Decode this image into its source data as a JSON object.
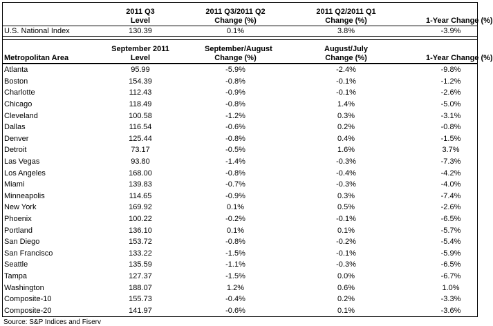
{
  "table": {
    "national": {
      "header": [
        [
          ""
        ],
        [
          "2011 Q3",
          "Level"
        ],
        [
          "2011 Q3/2011 Q2",
          "Change (%)"
        ],
        [
          "2011 Q2/2011 Q1",
          "Change (%)"
        ],
        [
          "",
          "1-Year Change (%)"
        ]
      ],
      "row": [
        "U.S. National Index",
        "130.39",
        "0.1%",
        "3.8%",
        "-3.9%"
      ]
    },
    "metro": {
      "header": [
        [
          "",
          "Metropolitan Area"
        ],
        [
          "September 2011",
          "Level"
        ],
        [
          "September/August",
          "Change (%)"
        ],
        [
          "August/July",
          "Change (%)"
        ],
        [
          "",
          "1-Year Change (%)"
        ]
      ],
      "rows": [
        [
          "Atlanta",
          "95.99",
          "-5.9%",
          "-2.4%",
          "-9.8%"
        ],
        [
          "Boston",
          "154.39",
          "-0.8%",
          "-0.1%",
          "-1.2%"
        ],
        [
          "Charlotte",
          "112.43",
          "-0.9%",
          "-0.1%",
          "-2.6%"
        ],
        [
          "Chicago",
          "118.49",
          "-0.8%",
          "1.4%",
          "-5.0%"
        ],
        [
          "Cleveland",
          "100.58",
          "-1.2%",
          "0.3%",
          "-3.1%"
        ],
        [
          "Dallas",
          "116.54",
          "-0.6%",
          "0.2%",
          "-0.8%"
        ],
        [
          "Denver",
          "125.44",
          "-0.8%",
          "0.4%",
          "-1.5%"
        ],
        [
          "Detroit",
          "73.17",
          "-0.5%",
          "1.6%",
          "3.7%"
        ],
        [
          "Las Vegas",
          "93.80",
          "-1.4%",
          "-0.3%",
          "-7.3%"
        ],
        [
          "Los Angeles",
          "168.00",
          "-0.8%",
          "-0.4%",
          "-4.2%"
        ],
        [
          "Miami",
          "139.83",
          "-0.7%",
          "-0.3%",
          "-4.0%"
        ],
        [
          "Minneapolis",
          "114.65",
          "-0.9%",
          "0.3%",
          "-7.4%"
        ],
        [
          "New York",
          "169.92",
          "0.1%",
          "0.5%",
          "-2.6%"
        ],
        [
          "Phoenix",
          "100.22",
          "-0.2%",
          "-0.1%",
          "-6.5%"
        ],
        [
          "Portland",
          "136.10",
          "0.1%",
          "0.1%",
          "-5.7%"
        ],
        [
          "San Diego",
          "153.72",
          "-0.8%",
          "-0.2%",
          "-5.4%"
        ],
        [
          "San Francisco",
          "133.22",
          "-1.5%",
          "-0.1%",
          "-5.9%"
        ],
        [
          "Seattle",
          "135.59",
          "-1.1%",
          "-0.3%",
          "-6.5%"
        ],
        [
          "Tampa",
          "127.37",
          "-1.5%",
          "0.0%",
          "-6.7%"
        ],
        [
          "Washington",
          "188.07",
          "1.2%",
          "0.6%",
          "1.0%"
        ],
        [
          "Composite-10",
          "155.73",
          "-0.4%",
          "0.2%",
          "-3.3%"
        ],
        [
          "Composite-20",
          "141.97",
          "-0.6%",
          "0.1%",
          "-3.6%"
        ]
      ]
    }
  },
  "source": "Source: S&P Indices and Fiserv"
}
